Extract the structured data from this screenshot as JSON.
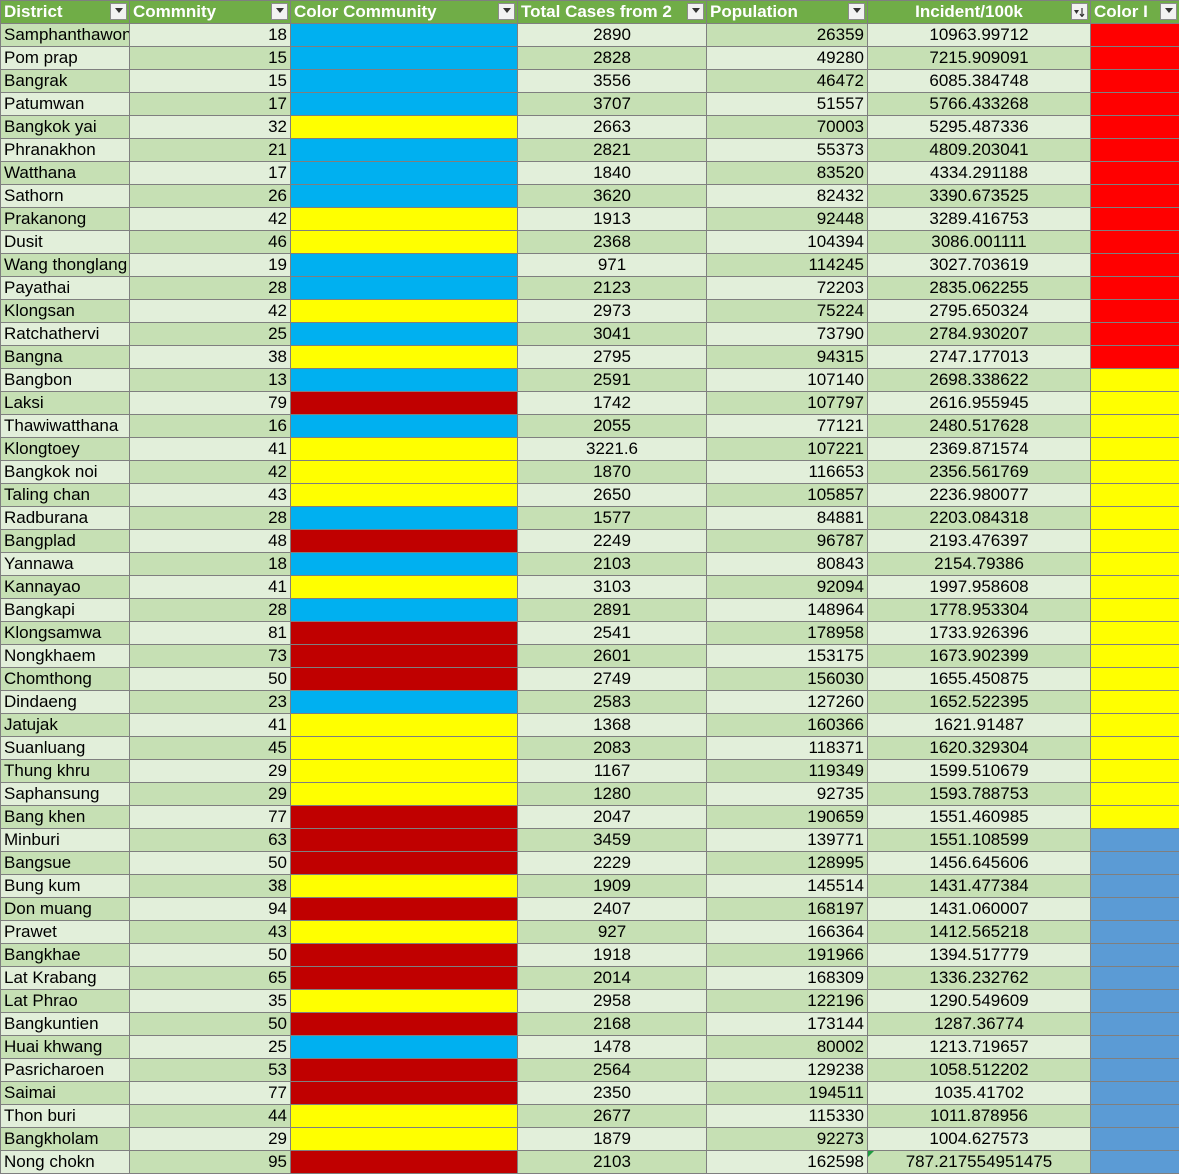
{
  "headers": [
    "District",
    "Commnity",
    "Color Community",
    "Total Cases from 2",
    "Population",
    "Incident/100k",
    "Color I"
  ],
  "colors": {
    "blue": "#00b0f0",
    "yellow": "#ffff00",
    "red": "#c00000",
    "red_bright": "#ff0000",
    "steel": "#5b9bd5"
  },
  "rows": [
    {
      "district": "Samphanthawong",
      "community": "18",
      "color_community": "blue",
      "total": "2890",
      "population": "26359",
      "incident": "10963.99712",
      "color_incident": "red_bright"
    },
    {
      "district": "Pom prap",
      "community": "15",
      "color_community": "blue",
      "total": "2828",
      "population": "49280",
      "incident": "7215.909091",
      "color_incident": "red_bright"
    },
    {
      "district": "Bangrak",
      "community": "15",
      "color_community": "blue",
      "total": "3556",
      "population": "46472",
      "incident": "6085.384748",
      "color_incident": "red_bright"
    },
    {
      "district": "Patumwan",
      "community": "17",
      "color_community": "blue",
      "total": "3707",
      "population": "51557",
      "incident": "5766.433268",
      "color_incident": "red_bright"
    },
    {
      "district": "Bangkok yai",
      "community": "32",
      "color_community": "yellow",
      "total": "2663",
      "population": "70003",
      "incident": "5295.487336",
      "color_incident": "red_bright"
    },
    {
      "district": "Phranakhon",
      "community": "21",
      "color_community": "blue",
      "total": "2821",
      "population": "55373",
      "incident": "4809.203041",
      "color_incident": "red_bright"
    },
    {
      "district": "Watthana",
      "community": "17",
      "color_community": "blue",
      "total": "1840",
      "population": "83520",
      "incident": "4334.291188",
      "color_incident": "red_bright"
    },
    {
      "district": "Sathorn",
      "community": "26",
      "color_community": "blue",
      "total": "3620",
      "population": "82432",
      "incident": "3390.673525",
      "color_incident": "red_bright"
    },
    {
      "district": "Prakanong",
      "community": "42",
      "color_community": "yellow",
      "total": "1913",
      "population": "92448",
      "incident": "3289.416753",
      "color_incident": "red_bright"
    },
    {
      "district": "Dusit",
      "community": "46",
      "color_community": "yellow",
      "total": "2368",
      "population": "104394",
      "incident": "3086.001111",
      "color_incident": "red_bright"
    },
    {
      "district": "Wang thonglang",
      "community": "19",
      "color_community": "blue",
      "total": "971",
      "population": "114245",
      "incident": "3027.703619",
      "color_incident": "red_bright"
    },
    {
      "district": "Payathai",
      "community": "28",
      "color_community": "blue",
      "total": "2123",
      "population": "72203",
      "incident": "2835.062255",
      "color_incident": "red_bright"
    },
    {
      "district": "Klongsan",
      "community": "42",
      "color_community": "yellow",
      "total": "2973",
      "population": "75224",
      "incident": "2795.650324",
      "color_incident": "red_bright"
    },
    {
      "district": "Ratchathervi",
      "community": "25",
      "color_community": "blue",
      "total": "3041",
      "population": "73790",
      "incident": "2784.930207",
      "color_incident": "red_bright"
    },
    {
      "district": "Bangna",
      "community": "38",
      "color_community": "yellow",
      "total": "2795",
      "population": "94315",
      "incident": "2747.177013",
      "color_incident": "red_bright"
    },
    {
      "district": "Bangbon",
      "community": "13",
      "color_community": "blue",
      "total": "2591",
      "population": "107140",
      "incident": "2698.338622",
      "color_incident": "yellow"
    },
    {
      "district": "Laksi",
      "community": "79",
      "color_community": "red",
      "total": "1742",
      "population": "107797",
      "incident": "2616.955945",
      "color_incident": "yellow"
    },
    {
      "district": "Thawiwatthana",
      "community": "16",
      "color_community": "blue",
      "total": "2055",
      "population": "77121",
      "incident": "2480.517628",
      "color_incident": "yellow"
    },
    {
      "district": "Klongtoey",
      "community": "41",
      "color_community": "yellow",
      "total": "3221.6",
      "population": "107221",
      "incident": "2369.871574",
      "color_incident": "yellow"
    },
    {
      "district": "Bangkok noi",
      "community": "42",
      "color_community": "yellow",
      "total": "1870",
      "population": "116653",
      "incident": "2356.561769",
      "color_incident": "yellow"
    },
    {
      "district": "Taling chan",
      "community": "43",
      "color_community": "yellow",
      "total": "2650",
      "population": "105857",
      "incident": "2236.980077",
      "color_incident": "yellow"
    },
    {
      "district": "Radburana",
      "community": "28",
      "color_community": "blue",
      "total": "1577",
      "population": "84881",
      "incident": "2203.084318",
      "color_incident": "yellow"
    },
    {
      "district": "Bangplad",
      "community": "48",
      "color_community": "red",
      "total": "2249",
      "population": "96787",
      "incident": "2193.476397",
      "color_incident": "yellow"
    },
    {
      "district": "Yannawa",
      "community": "18",
      "color_community": "blue",
      "total": "2103",
      "population": "80843",
      "incident": "2154.79386",
      "color_incident": "yellow"
    },
    {
      "district": "Kannayao",
      "community": "41",
      "color_community": "yellow",
      "total": "3103",
      "population": "92094",
      "incident": "1997.958608",
      "color_incident": "yellow"
    },
    {
      "district": "Bangkapi",
      "community": "28",
      "color_community": "blue",
      "total": "2891",
      "population": "148964",
      "incident": "1778.953304",
      "color_incident": "yellow"
    },
    {
      "district": "Klongsamwa",
      "community": "81",
      "color_community": "red",
      "total": "2541",
      "population": "178958",
      "incident": "1733.926396",
      "color_incident": "yellow"
    },
    {
      "district": "Nongkhaem",
      "community": "73",
      "color_community": "red",
      "total": "2601",
      "population": "153175",
      "incident": "1673.902399",
      "color_incident": "yellow"
    },
    {
      "district": "Chomthong",
      "community": "50",
      "color_community": "red",
      "total": "2749",
      "population": "156030",
      "incident": "1655.450875",
      "color_incident": "yellow"
    },
    {
      "district": "Dindaeng",
      "community": "23",
      "color_community": "blue",
      "total": "2583",
      "population": "127260",
      "incident": "1652.522395",
      "color_incident": "yellow"
    },
    {
      "district": "Jatujak",
      "community": "41",
      "color_community": "yellow",
      "total": "1368",
      "population": "160366",
      "incident": "1621.91487",
      "color_incident": "yellow"
    },
    {
      "district": "Suanluang",
      "community": "45",
      "color_community": "yellow",
      "total": "2083",
      "population": "118371",
      "incident": "1620.329304",
      "color_incident": "yellow"
    },
    {
      "district": "Thung khru",
      "community": "29",
      "color_community": "yellow",
      "total": "1167",
      "population": "119349",
      "incident": "1599.510679",
      "color_incident": "yellow"
    },
    {
      "district": "Saphansung",
      "community": "29",
      "color_community": "yellow",
      "total": "1280",
      "population": "92735",
      "incident": "1593.788753",
      "color_incident": "yellow"
    },
    {
      "district": "Bang khen",
      "community": "77",
      "color_community": "red",
      "total": "2047",
      "population": "190659",
      "incident": "1551.460985",
      "color_incident": "yellow"
    },
    {
      "district": "Minburi",
      "community": "63",
      "color_community": "red",
      "total": "3459",
      "population": "139771",
      "incident": "1551.108599",
      "color_incident": "steel"
    },
    {
      "district": "Bangsue",
      "community": "50",
      "color_community": "red",
      "total": "2229",
      "population": "128995",
      "incident": "1456.645606",
      "color_incident": "steel"
    },
    {
      "district": "Bung kum",
      "community": "38",
      "color_community": "yellow",
      "total": "1909",
      "population": "145514",
      "incident": "1431.477384",
      "color_incident": "steel"
    },
    {
      "district": "Don muang",
      "community": "94",
      "color_community": "red",
      "total": "2407",
      "population": "168197",
      "incident": "1431.060007",
      "color_incident": "steel"
    },
    {
      "district": "Prawet",
      "community": "43",
      "color_community": "yellow",
      "total": "927",
      "population": "166364",
      "incident": "1412.565218",
      "color_incident": "steel"
    },
    {
      "district": "Bangkhae",
      "community": "50",
      "color_community": "red",
      "total": "1918",
      "population": "191966",
      "incident": "1394.517779",
      "color_incident": "steel"
    },
    {
      "district": "Lat Krabang",
      "community": "65",
      "color_community": "red",
      "total": "2014",
      "population": "168309",
      "incident": "1336.232762",
      "color_incident": "steel"
    },
    {
      "district": "Lat Phrao",
      "community": "35",
      "color_community": "yellow",
      "total": "2958",
      "population": "122196",
      "incident": "1290.549609",
      "color_incident": "steel"
    },
    {
      "district": "Bangkuntien",
      "community": "50",
      "color_community": "red",
      "total": "2168",
      "population": "173144",
      "incident": "1287.36774",
      "color_incident": "steel"
    },
    {
      "district": "Huai khwang",
      "community": "25",
      "color_community": "blue",
      "total": "1478",
      "population": "80002",
      "incident": "1213.719657",
      "color_incident": "steel"
    },
    {
      "district": "Pasricharoen",
      "community": "53",
      "color_community": "red",
      "total": "2564",
      "population": "129238",
      "incident": "1058.512202",
      "color_incident": "steel"
    },
    {
      "district": "Saimai",
      "community": "77",
      "color_community": "red",
      "total": "2350",
      "population": "194511",
      "incident": "1035.41702",
      "color_incident": "steel"
    },
    {
      "district": "Thon buri",
      "community": "44",
      "color_community": "yellow",
      "total": "2677",
      "population": "115330",
      "incident": "1011.878956",
      "color_incident": "steel"
    },
    {
      "district": "Bangkholam",
      "community": "29",
      "color_community": "yellow",
      "total": "1879",
      "population": "92273",
      "incident": "1004.627573",
      "color_incident": "steel"
    },
    {
      "district": "Nong chokn",
      "community": "95",
      "color_community": "red",
      "total": "2103",
      "population": "162598",
      "incident": "787.217554951475",
      "color_incident": "steel"
    }
  ]
}
